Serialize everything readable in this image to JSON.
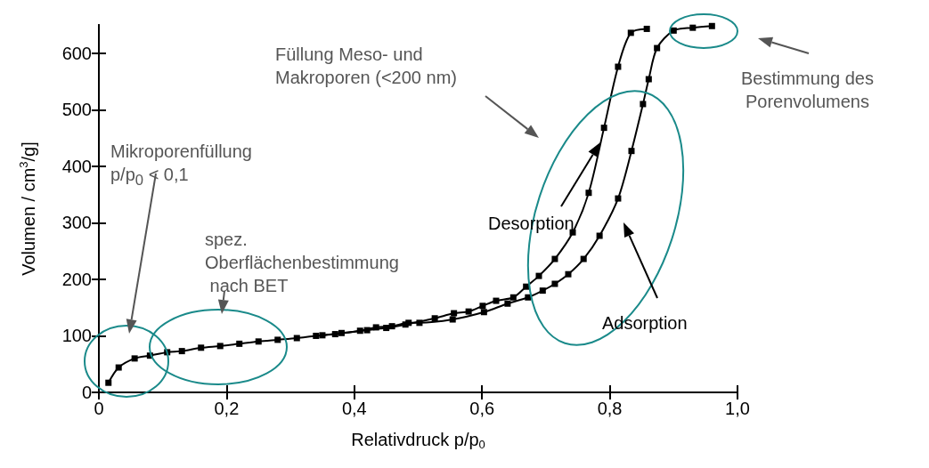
{
  "chart_data": {
    "type": "line",
    "xlabel": "Relativdruck p/p$_{0}$",
    "ylabel": "Volumen / cm$^{3}$/g]",
    "xlim": [
      0,
      1.0
    ],
    "xticks": [
      0,
      {
        "value": 0.2,
        "label": "0,2"
      },
      {
        "value": 0.4,
        "label": "0,4"
      },
      {
        "value": 0.6,
        "label": "0,6"
      },
      {
        "value": 0.8,
        "label": "0,8"
      },
      {
        "value": 1.0,
        "label": "1,0"
      }
    ],
    "ylim": [
      0,
      650
    ],
    "yticks": [
      0,
      100,
      200,
      300,
      400,
      500,
      600
    ],
    "grid": false,
    "legend": false,
    "marker": "square",
    "line_style": "solid",
    "series": [
      {
        "name": "Adsorption",
        "color": "#000000",
        "x": [
          0.015,
          0.031,
          0.056,
          0.08,
          0.107,
          0.13,
          0.16,
          0.19,
          0.22,
          0.25,
          0.28,
          0.31,
          0.34,
          0.37,
          0.409,
          0.434,
          0.459,
          0.485,
          0.502,
          0.554,
          0.603,
          0.64,
          0.672,
          0.695,
          0.714,
          0.735,
          0.759,
          0.784,
          0.813,
          0.834,
          0.852,
          0.861,
          0.874,
          0.9,
          0.93,
          0.96
        ],
        "values": [
          17,
          44,
          60,
          65,
          71,
          73,
          79,
          82,
          86,
          90,
          93,
          96,
          100,
          103,
          109,
          115,
          117,
          123,
          123,
          129,
          142,
          157,
          168,
          180,
          192,
          209,
          236,
          277,
          343,
          427,
          510,
          554,
          609,
          640,
          645,
          648
        ]
      },
      {
        "name": "Desorption",
        "color": "#000000",
        "x": [
          0.35,
          0.38,
          0.42,
          0.45,
          0.48,
          0.526,
          0.556,
          0.579,
          0.601,
          0.622,
          0.649,
          0.669,
          0.689,
          0.714,
          0.742,
          0.767,
          0.791,
          0.813,
          0.833,
          0.858
        ],
        "values": [
          101,
          105,
          110,
          114,
          120,
          131,
          140,
          143,
          153,
          162,
          168,
          187,
          206,
          236,
          283,
          353,
          468,
          576,
          636,
          643
        ]
      }
    ],
    "annotations": [
      "Mikroporenfüllung\np/p$_{0}$ < 0,1",
      "spez.\nOberflächenbestimmung\n nach BET",
      "Füllung Meso- und\nMakroporen (<200 nm)",
      "Bestimmung des\nPorenvolumens"
    ]
  }
}
